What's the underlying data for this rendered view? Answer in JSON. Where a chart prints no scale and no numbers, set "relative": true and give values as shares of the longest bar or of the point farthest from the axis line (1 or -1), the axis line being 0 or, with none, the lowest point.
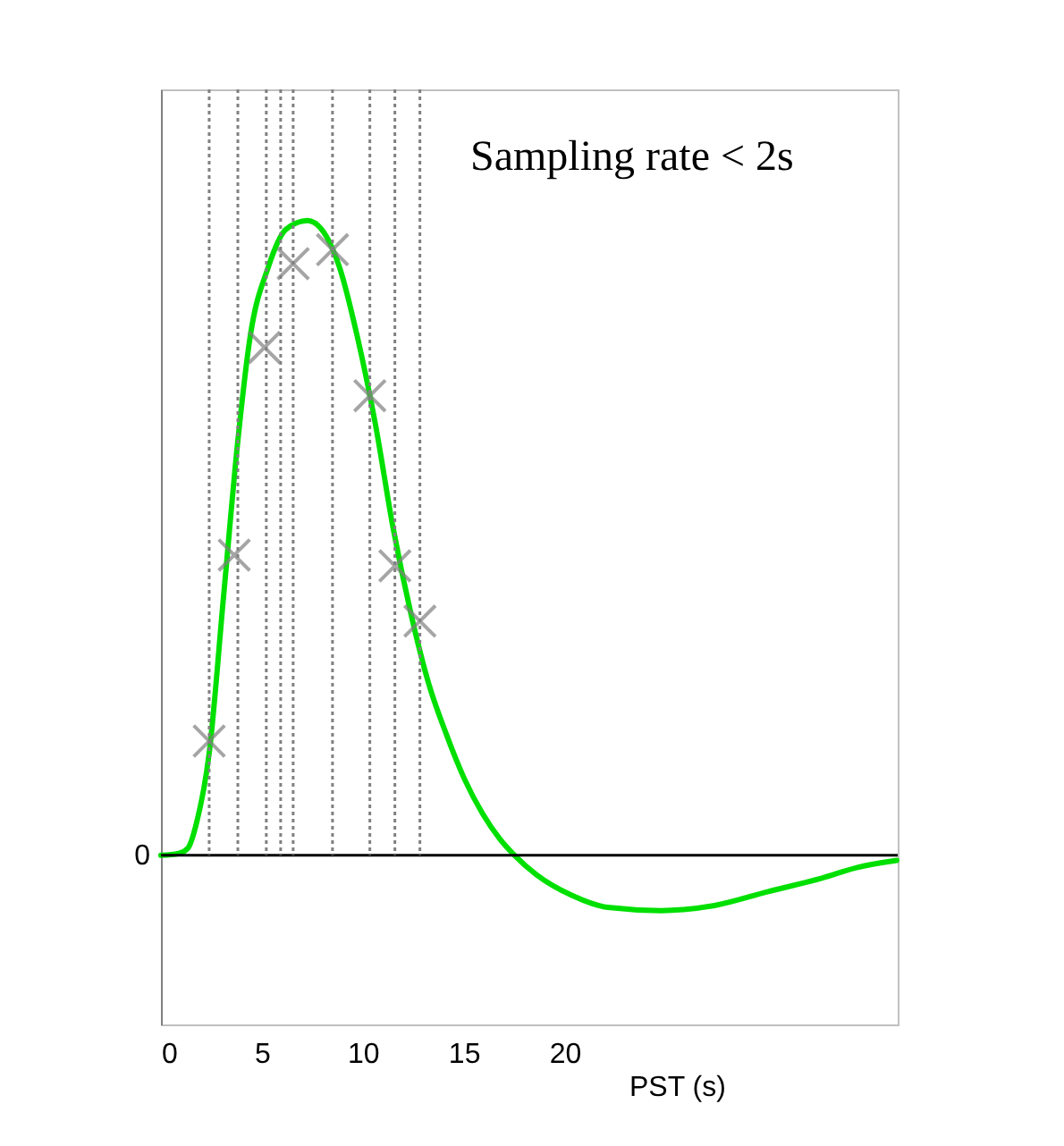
{
  "chart_data": {
    "type": "line",
    "relative": true,
    "xlabel": "PST (s)",
    "xlim": [
      0,
      36.5
    ],
    "xticks": [
      0,
      5,
      10,
      15,
      20
    ],
    "tick_labels": "x",
    "legend": false,
    "grid": false,
    "annotations": [
      "Sampling rate < 2s"
    ],
    "series": [
      {
        "color": "#00e000",
        "line_style": "solid",
        "marker": "none",
        "x": [
          0,
          0.88,
          1.33,
          1.77,
          2.39,
          3.1,
          3.81,
          4.42,
          5.31,
          6.19,
          7.26,
          7.96,
          8.85,
          9.73,
          10.62,
          11.5,
          12.39,
          13.27,
          14.16,
          15.04,
          15.93,
          16.81,
          17.52,
          18.58,
          20.35,
          22.12,
          24.78,
          27.43,
          30.09,
          32.74,
          34.51,
          36.46
        ],
        "values": [
          0,
          0.003,
          0.011,
          0.052,
          0.161,
          0.407,
          0.653,
          0.817,
          0.926,
          0.986,
          1,
          0.986,
          0.926,
          0.817,
          0.68,
          0.516,
          0.38,
          0.27,
          0.189,
          0.12,
          0.066,
          0.025,
          0,
          -0.03,
          -0.063,
          -0.082,
          -0.087,
          -0.079,
          -0.057,
          -0.036,
          -0.019,
          -0.008
        ]
      },
      {
        "type": "scatter",
        "color": "#808080",
        "marker": "cross",
        "x": [
          2.39,
          3.63,
          5.13,
          6.55,
          8.5,
          10.35,
          11.59,
          12.83
        ],
        "values": [
          0.18,
          0.473,
          0.8,
          0.932,
          0.954,
          0.724,
          0.456,
          0.369
        ]
      }
    ],
    "ref_lines": [
      {
        "axis": "y",
        "value": 0,
        "label": "0",
        "color": "#000000",
        "line_style": "solid"
      },
      {
        "axis": "x",
        "value": 2.39,
        "color": "#808080",
        "line_style": "dotted"
      },
      {
        "axis": "x",
        "value": 3.81,
        "color": "#808080",
        "line_style": "dotted"
      },
      {
        "axis": "x",
        "value": 5.22,
        "color": "#808080",
        "line_style": "dotted"
      },
      {
        "axis": "x",
        "value": 5.93,
        "color": "#808080",
        "line_style": "dotted"
      },
      {
        "axis": "x",
        "value": 6.55,
        "color": "#808080",
        "line_style": "dotted"
      },
      {
        "axis": "x",
        "value": 8.5,
        "color": "#808080",
        "line_style": "dotted"
      },
      {
        "axis": "x",
        "value": 10.35,
        "color": "#808080",
        "line_style": "dotted"
      },
      {
        "axis": "x",
        "value": 11.59,
        "color": "#808080",
        "line_style": "dotted"
      },
      {
        "axis": "x",
        "value": 12.83,
        "color": "#808080",
        "line_style": "dotted"
      }
    ]
  }
}
